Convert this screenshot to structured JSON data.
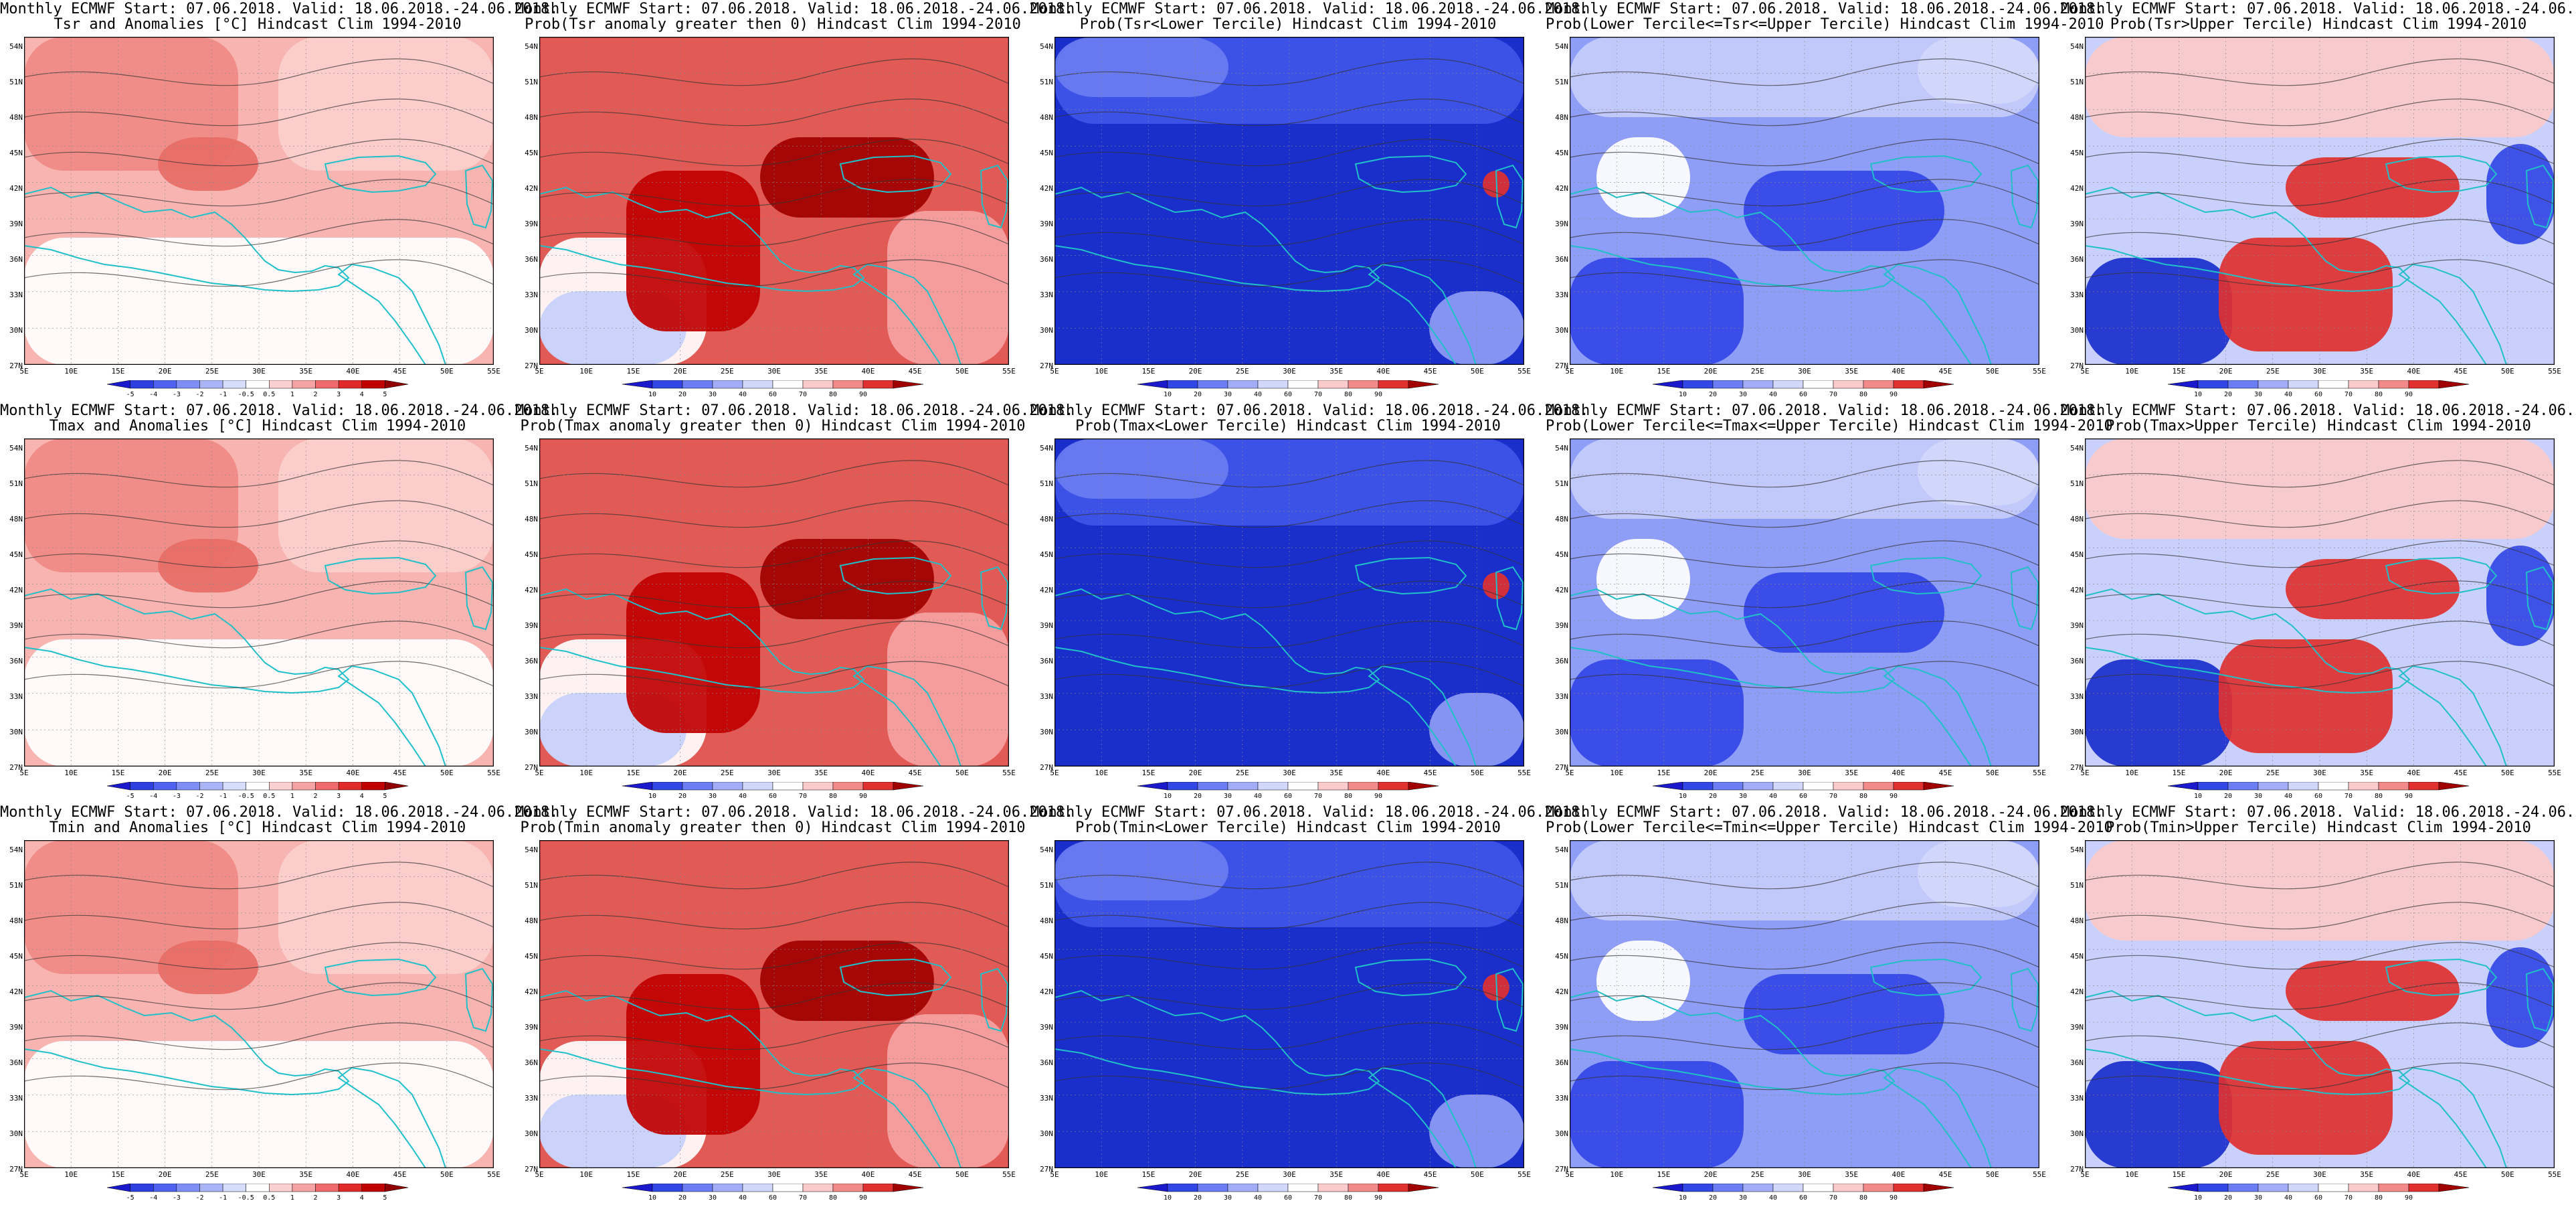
{
  "header_line": "Monthly ECMWF Start: 07.06.2018. Valid: 18.06.2018.-24.06.2018.",
  "lat_labels": [
    "54N",
    "51N",
    "48N",
    "45N",
    "42N",
    "39N",
    "36N",
    "33N",
    "30N",
    "27N"
  ],
  "lon_labels": [
    "5E",
    "10E",
    "15E",
    "20E",
    "25E",
    "30E",
    "35E",
    "40E",
    "45E",
    "50E",
    "55E"
  ],
  "colorbars": {
    "anomaly": {
      "labels": [
        "-5",
        "-4",
        "-3",
        "-2",
        "-1",
        "-0.5",
        "0.5",
        "1",
        "2",
        "3",
        "4",
        "5"
      ],
      "colors": [
        "#1a1acc",
        "#2e3fe0",
        "#4f63f0",
        "#7f8ef5",
        "#aab5f8",
        "#d6dcfb",
        "#ffffff",
        "#fbd0d0",
        "#f6a3a3",
        "#ef6b6b",
        "#e02a2a",
        "#c00000",
        "#900000"
      ]
    },
    "probability": {
      "labels": [
        "10",
        "20",
        "30",
        "40",
        "60",
        "70",
        "80",
        "90"
      ],
      "colors": [
        "#1a1acc",
        "#3347e6",
        "#6a7df2",
        "#a2adf7",
        "#d2d8fb",
        "#ffffff",
        "#fbcaca",
        "#f28a8a",
        "#e03030",
        "#a00000"
      ]
    }
  },
  "panels": [
    {
      "subtitle": "Tsr and Anomalies [°C] Hindcast Clim 1994-2010",
      "colorbar": "anomaly",
      "scheme": "anom"
    },
    {
      "subtitle": "Prob(Tsr anomaly greater then 0) Hindcast Clim 1994-2010",
      "colorbar": "probability",
      "scheme": "probwarm"
    },
    {
      "subtitle": "Prob(Tsr<Lower Tercile) Hindcast Clim 1994-2010",
      "colorbar": "probability",
      "scheme": "lower"
    },
    {
      "subtitle": "Prob(Lower Tercile<=Tsr<=Upper Tercile) Hindcast Clim 1994-2010",
      "colorbar": "probability",
      "scheme": "middle"
    },
    {
      "subtitle": "Prob(Tsr>Upper Tercile) Hindcast Clim 1994-2010",
      "colorbar": "probability",
      "scheme": "upper"
    },
    {
      "subtitle": "Tmax and Anomalies [°C] Hindcast Clim 1994-2010",
      "colorbar": "anomaly",
      "scheme": "anom"
    },
    {
      "subtitle": "Prob(Tmax anomaly greater then 0) Hindcast Clim 1994-2010",
      "colorbar": "probability",
      "scheme": "probwarm"
    },
    {
      "subtitle": "Prob(Tmax<Lower Tercile) Hindcast Clim 1994-2010",
      "colorbar": "probability",
      "scheme": "lower"
    },
    {
      "subtitle": "Prob(Lower Tercile<=Tmax<=Upper Tercile) Hindcast Clim 1994-2010",
      "colorbar": "probability",
      "scheme": "middle"
    },
    {
      "subtitle": "Prob(Tmax>Upper Tercile) Hindcast Clim 1994-2010",
      "colorbar": "probability",
      "scheme": "upper"
    },
    {
      "subtitle": "Tmin and Anomalies [°C] Hindcast Clim 1994-2010",
      "colorbar": "anomaly",
      "scheme": "anom"
    },
    {
      "subtitle": "Prob(Tmin anomaly greater then 0) Hindcast Clim 1994-2010",
      "colorbar": "probability",
      "scheme": "probwarm"
    },
    {
      "subtitle": "Prob(Tmin<Lower Tercile) Hindcast Clim 1994-2010",
      "colorbar": "probability",
      "scheme": "lower"
    },
    {
      "subtitle": "Prob(Lower Tercile<=Tmin<=Upper Tercile) Hindcast Clim 1994-2010",
      "colorbar": "probability",
      "scheme": "middle"
    },
    {
      "subtitle": "Prob(Tmin>Upper Tercile) Hindcast Clim 1994-2010",
      "colorbar": "probability",
      "scheme": "upper"
    }
  ]
}
